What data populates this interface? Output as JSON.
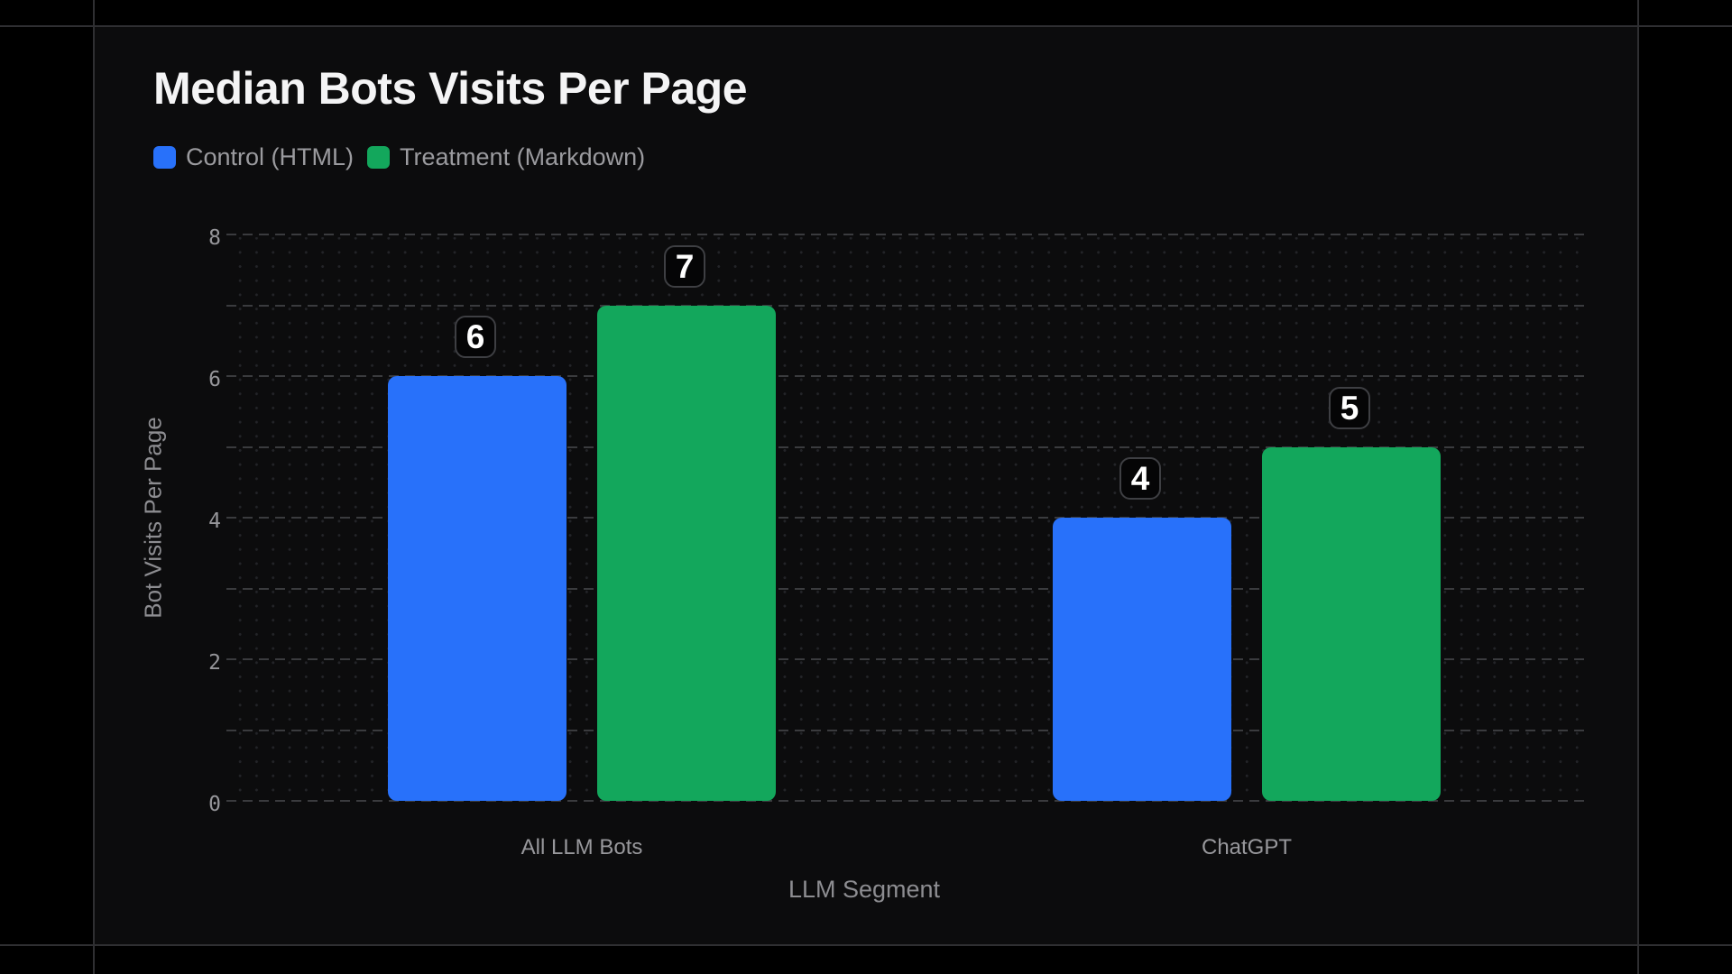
{
  "frame": {
    "background": "#000000",
    "card_background": "#0c0c0d",
    "border_color": "#2f2f32"
  },
  "chart_data": {
    "type": "bar",
    "title": "Median Bots Visits Per Page",
    "xlabel": "LLM Segment",
    "ylabel": "Bot Visits Per Page",
    "categories": [
      "All LLM Bots",
      "ChatGPT"
    ],
    "series": [
      {
        "name": "Control (HTML)",
        "color": "#2871fa",
        "values": [
          6,
          4
        ]
      },
      {
        "name": "Treatment (Markdown)",
        "color": "#13a75c",
        "values": [
          7,
          5
        ]
      }
    ],
    "ylim": [
      0,
      8
    ],
    "yticks": [
      0,
      2,
      4,
      6,
      8
    ],
    "gridline_step": 1,
    "grid_style": "dashed horizontal lines with dotted background grid",
    "legend_position": "top-left",
    "value_label_style": "white number in dark rounded badge above each bar",
    "colors": {
      "title_text": "#f4f4f5",
      "axis_text": "#96969a",
      "axis_title_text": "#8d8d91",
      "gridline": "#3a3b3e",
      "dot_grid": "#232428",
      "badge_background": "#050506",
      "badge_border": "#3e3f43",
      "badge_text": "#ffffff"
    }
  }
}
